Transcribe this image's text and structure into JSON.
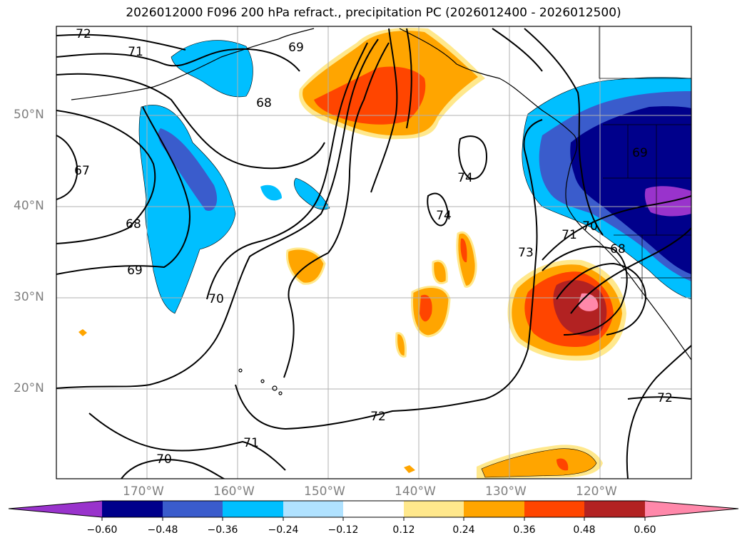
{
  "title": "2026012000 F096 200 hPa refract., precipitation PC (2026012400 - 2026012500)",
  "lat_labels": [
    "50°N",
    "40°N",
    "30°N",
    "20°N"
  ],
  "lon_labels": [
    "170°W",
    "160°W",
    "150°W",
    "140°W",
    "130°W",
    "120°W"
  ],
  "colorbar": {
    "ticks": [
      "−0.60",
      "−0.48",
      "−0.36",
      "−0.24",
      "−0.12",
      "0.12",
      "0.24",
      "0.36",
      "0.48",
      "0.60"
    ],
    "colors": [
      "#9933cc",
      "#00008b",
      "#3a5ccc",
      "#00bfff",
      "#b0e2ff",
      "#ffffff",
      "#ffe88c",
      "#ffa500",
      "#ff4500",
      "#b22222",
      "#ff88aa"
    ]
  },
  "contour_labels": [
    "72",
    "71",
    "68",
    "67",
    "68",
    "69",
    "70",
    "70",
    "71",
    "72",
    "74",
    "74",
    "73",
    "71",
    "70",
    "69",
    "68",
    "72",
    "69"
  ]
}
